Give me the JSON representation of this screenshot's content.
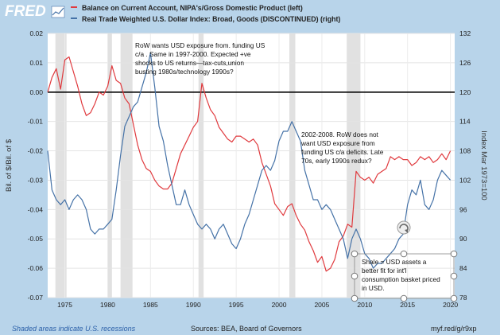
{
  "header": {
    "logo_text": "FRED",
    "legend": [
      {
        "label": "Balance on Current Account, NIPA's/Gross Domestic Product (left)",
        "color": "#e03a3e"
      },
      {
        "label": "Real Trade Weighted U.S. Dollar Index: Broad, Goods (DISCONTINUED) (right)",
        "color": "#4572a7"
      }
    ]
  },
  "footer": {
    "recessions_note": "Shaded areas indicate U.S. recessions",
    "sources": "Sources: BEA, Board of Governors",
    "link": "myf.red/g/r9xp"
  },
  "annotations": [
    {
      "lines": [
        "RoW wants USD exposure from. funding US",
        "c/a . Same in 1997-2000.  Expected +ve",
        "shocks to US returns—tax-cuts,union",
        "busting 1980s/technology 1990s?"
      ]
    },
    {
      "lines": [
        "2002-2008. RoW does not",
        "want USD exposure from",
        "funding US c/a deficits. Late",
        "70s, early 1990s redux?"
      ]
    },
    {
      "lines": [
        "Shale = USD assets  a",
        "better fit for int'l",
        "consumption basket priced",
        "in USD."
      ]
    }
  ],
  "colors": {
    "background": "#b8d4ea",
    "plot": "#ffffff",
    "current_account": "#e03a3e",
    "dollar_index": "#4572a7",
    "recession": "#e1e1e1"
  },
  "chart_data": {
    "type": "line",
    "xlabel": "",
    "ylabel": "Bil. of $/Bil. of $",
    "ylabel_right": "Index Mar 1973=100",
    "xlim": [
      1973,
      2020.5
    ],
    "ylim": [
      -0.07,
      0.02
    ],
    "ylim_right": [
      78,
      132
    ],
    "x_ticks": [
      "1975",
      "1980",
      "1985",
      "1990",
      "1995",
      "2000",
      "2005",
      "2010",
      "2015",
      "2020"
    ],
    "y_ticks": [
      "0.02",
      "0.01",
      "0.00",
      "-0.01",
      "-0.02",
      "-0.03",
      "-0.04",
      "-0.05",
      "-0.06",
      "-0.07"
    ],
    "y_ticks_right": [
      "132",
      "126",
      "120",
      "114",
      "108",
      "102",
      "96",
      "90",
      "84",
      "78"
    ],
    "recessions": [
      [
        1973.9,
        1975.2
      ],
      [
        1980.0,
        1980.5
      ],
      [
        1981.5,
        1982.9
      ],
      [
        1990.6,
        1991.2
      ],
      [
        2001.2,
        2001.9
      ],
      [
        2007.9,
        2009.5
      ]
    ],
    "series": [
      {
        "name": "Balance on Current Account, NIPA's/Gross Domestic Product (left)",
        "axis": "left",
        "x": [
          1973.0,
          1973.5,
          1974.0,
          1974.5,
          1975.0,
          1975.5,
          1976.0,
          1976.5,
          1977.0,
          1977.5,
          1978.0,
          1978.5,
          1979.0,
          1979.5,
          1980.0,
          1980.5,
          1981.0,
          1981.5,
          1982.0,
          1982.5,
          1983.0,
          1983.5,
          1984.0,
          1984.5,
          1985.0,
          1985.5,
          1986.0,
          1986.5,
          1987.0,
          1987.5,
          1988.0,
          1988.5,
          1989.0,
          1989.5,
          1990.0,
          1990.5,
          1991.0,
          1991.5,
          1992.0,
          1992.5,
          1993.0,
          1993.5,
          1994.0,
          1994.5,
          1995.0,
          1995.5,
          1996.0,
          1996.5,
          1997.0,
          1997.5,
          1998.0,
          1998.5,
          1999.0,
          1999.5,
          2000.0,
          2000.5,
          2001.0,
          2001.5,
          2002.0,
          2002.5,
          2003.0,
          2003.5,
          2004.0,
          2004.5,
          2005.0,
          2005.5,
          2006.0,
          2006.5,
          2007.0,
          2007.5,
          2008.0,
          2008.5,
          2009.0,
          2009.5,
          2010.0,
          2010.5,
          2011.0,
          2011.5,
          2012.0,
          2012.5,
          2013.0,
          2013.5,
          2014.0,
          2014.5,
          2015.0,
          2015.5,
          2016.0,
          2016.5,
          2017.0,
          2017.5,
          2018.0,
          2018.5,
          2019.0,
          2019.5,
          2020.0
        ],
        "values": [
          0.0,
          0.005,
          0.008,
          0.001,
          0.011,
          0.012,
          0.007,
          0.002,
          -0.004,
          -0.008,
          -0.007,
          -0.004,
          0.0,
          -0.001,
          0.002,
          0.009,
          0.004,
          0.003,
          -0.002,
          -0.004,
          -0.011,
          -0.018,
          -0.023,
          -0.026,
          -0.027,
          -0.03,
          -0.032,
          -0.033,
          -0.033,
          -0.031,
          -0.026,
          -0.021,
          -0.018,
          -0.015,
          -0.012,
          -0.01,
          0.003,
          -0.002,
          -0.006,
          -0.008,
          -0.012,
          -0.014,
          -0.016,
          -0.017,
          -0.015,
          -0.015,
          -0.016,
          -0.017,
          -0.016,
          -0.018,
          -0.024,
          -0.028,
          -0.032,
          -0.038,
          -0.04,
          -0.042,
          -0.039,
          -0.038,
          -0.042,
          -0.045,
          -0.047,
          -0.051,
          -0.054,
          -0.058,
          -0.056,
          -0.061,
          -0.06,
          -0.057,
          -0.051,
          -0.049,
          -0.045,
          -0.046,
          -0.027,
          -0.029,
          -0.03,
          -0.029,
          -0.031,
          -0.028,
          -0.027,
          -0.026,
          -0.022,
          -0.023,
          -0.022,
          -0.023,
          -0.023,
          -0.025,
          -0.024,
          -0.022,
          -0.023,
          -0.022,
          -0.024,
          -0.023,
          -0.021,
          -0.023,
          -0.02
        ]
      },
      {
        "name": "Real Trade Weighted U.S. Dollar Index: Broad, Goods (DISCONTINUED) (right)",
        "axis": "right",
        "x": [
          1973.0,
          1973.5,
          1974.0,
          1974.5,
          1975.0,
          1975.5,
          1976.0,
          1976.5,
          1977.0,
          1977.5,
          1978.0,
          1978.5,
          1979.0,
          1979.5,
          1980.0,
          1980.5,
          1981.0,
          1981.5,
          1982.0,
          1982.5,
          1983.0,
          1983.5,
          1984.0,
          1984.5,
          1985.0,
          1985.5,
          1986.0,
          1986.5,
          1987.0,
          1987.5,
          1988.0,
          1988.5,
          1989.0,
          1989.5,
          1990.0,
          1990.5,
          1991.0,
          1991.5,
          1992.0,
          1992.5,
          1993.0,
          1993.5,
          1994.0,
          1994.5,
          1995.0,
          1995.5,
          1996.0,
          1996.5,
          1997.0,
          1997.5,
          1998.0,
          1998.5,
          1999.0,
          1999.5,
          2000.0,
          2000.5,
          2001.0,
          2001.5,
          2002.0,
          2002.5,
          2003.0,
          2003.5,
          2004.0,
          2004.5,
          2005.0,
          2005.5,
          2006.0,
          2006.5,
          2007.0,
          2007.5,
          2008.0,
          2008.5,
          2009.0,
          2009.5,
          2010.0,
          2010.5,
          2011.0,
          2011.5,
          2012.0,
          2012.5,
          2013.0,
          2013.5,
          2014.0,
          2014.5,
          2015.0,
          2015.5,
          2016.0,
          2016.5,
          2017.0,
          2017.5,
          2018.0,
          2018.5,
          2019.0,
          2019.5,
          2020.0
        ],
        "values": [
          108,
          100,
          98,
          97,
          98,
          96,
          98,
          99,
          98,
          96,
          92,
          91,
          92,
          92,
          93,
          94,
          100,
          107,
          113,
          115,
          117,
          118,
          121,
          124,
          128,
          121,
          113,
          110,
          105,
          101,
          97,
          97,
          100,
          97,
          95,
          93,
          92,
          93,
          92,
          90,
          92,
          93,
          91,
          89,
          88,
          90,
          93,
          95,
          98,
          101,
          104,
          105,
          104,
          106,
          110,
          112,
          112,
          114,
          112,
          110,
          104,
          101,
          98,
          98,
          96,
          97,
          96,
          94,
          92,
          90,
          86,
          90,
          92,
          90,
          87,
          86,
          84,
          85,
          85,
          86,
          87,
          88,
          90,
          91,
          97,
          100,
          99,
          102,
          97,
          96,
          98,
          102,
          104,
          103,
          102
        ]
      }
    ]
  }
}
